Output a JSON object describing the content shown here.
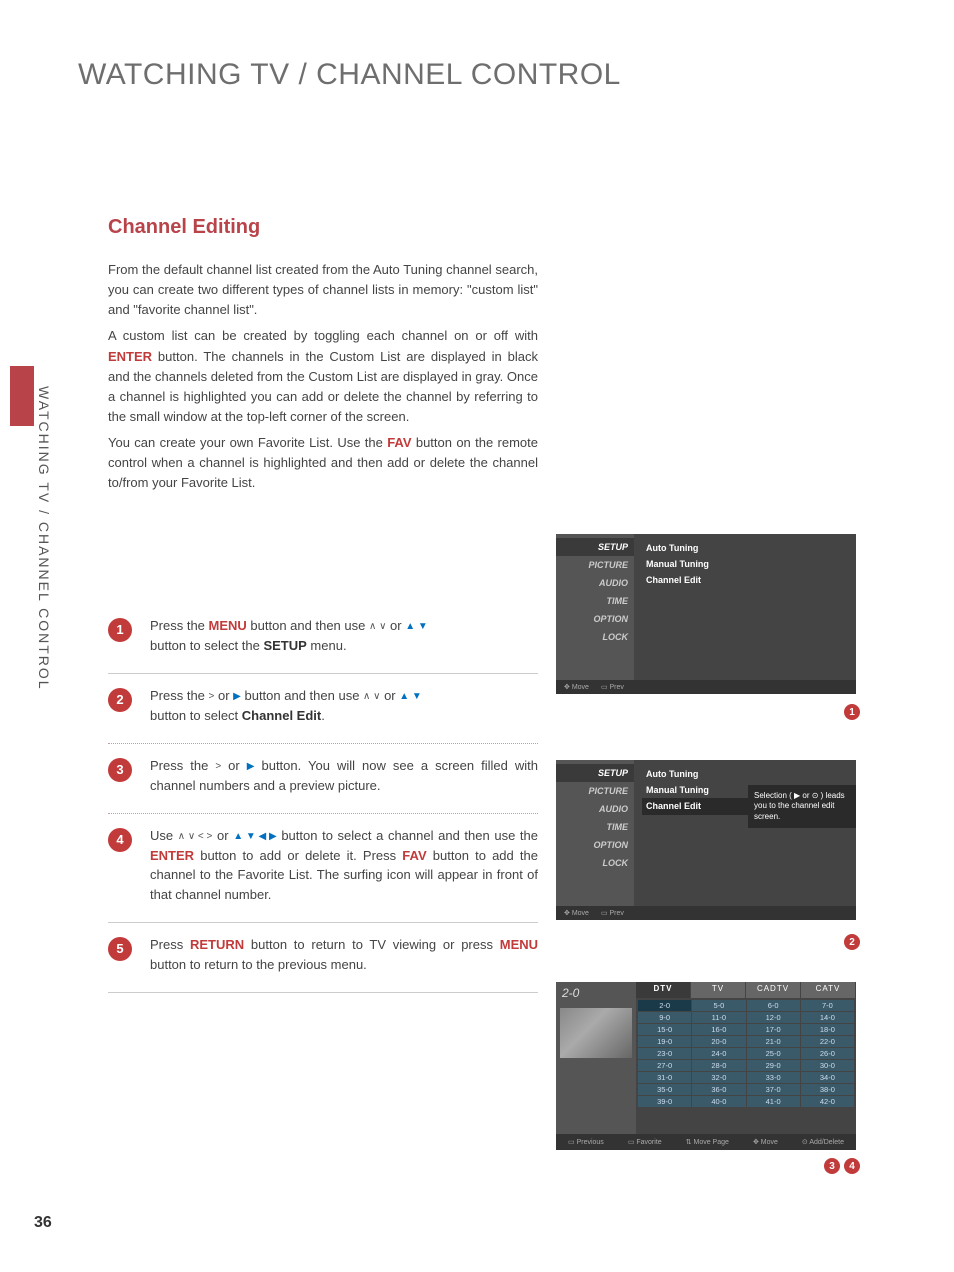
{
  "page_title": "WATCHING TV / CHANNEL CONTROL",
  "side_label": "WATCHING TV / CHANNEL CONTROL",
  "section_title": "Channel Editing",
  "page_number": "36",
  "intro": {
    "p1": "From the default channel list created from the Auto Tuning channel search, you can create two different types of channel lists in memory: \"custom list\" and \"favorite channel list\".",
    "p2a": "A custom list can be created by toggling each channel on or off with ",
    "p2_enter": "ENTER",
    "p2b": " button. The channels in the Custom List are displayed in black and the channels deleted from the Custom List are displayed in gray. Once a channel is highlighted you can add or delete the channel by referring to the small window at the top-left corner of the screen.",
    "p3a": "You can create your own Favorite List. Use the ",
    "p3_fav": "FAV",
    "p3b": " button on the remote control when a channel is highlighted and then add or delete the channel to/from your Favorite List."
  },
  "steps": {
    "s1a": "Press the ",
    "s1_menu": "MENU",
    "s1b": " button and then use   ",
    "s1c": "  or  ",
    "s1d": "button to select the ",
    "s1_setup": "SETUP",
    "s1e": " menu.",
    "s2a": "Press the ",
    "s2b": "  or  ",
    "s2c": " button and then use  ",
    "s2d": "  or  ",
    "s2e": "button to select ",
    "s2_ch": "Channel Edit",
    "s2f": ".",
    "s3a": "Press the ",
    "s3b": "   or  ",
    "s3c": "  button. You will now see a screen filled with channel numbers and a preview picture.",
    "s4a": "Use   ",
    "s4b": "   or  ",
    "s4c": "  button to select a channel and then use the ",
    "s4_enter": "ENTER",
    "s4d": " button  to add or delete it. Press ",
    "s4_fav": "FAV",
    "s4e": " button to add the channel to the Favorite List. The surfing icon will appear in front of that channel number.",
    "s5a": "Press ",
    "s5_ret": "RETURN",
    "s5b": " button to return to TV viewing or press ",
    "s5_menu": "MENU",
    "s5c": " button to return to the previous menu."
  },
  "osd": {
    "side_items": [
      "SETUP",
      "PICTURE",
      "AUDIO",
      "TIME",
      "OPTION",
      "LOCK"
    ],
    "menu_items": [
      "Auto Tuning",
      "Manual Tuning",
      "Channel Edit"
    ],
    "foot_move": "Move",
    "foot_prev": "Prev",
    "tooltip": "Selection ( ▶ or ⊙ ) leads you to the channel edit screen."
  },
  "osd3": {
    "channel": "2-0",
    "tabs": [
      "DTV",
      "TV",
      "CADTV",
      "CATV"
    ],
    "grid": [
      "2-0",
      "5-0",
      "6-0",
      "7-0",
      "9-0",
      "11-0",
      "12-0",
      "14-0",
      "15-0",
      "16-0",
      "17-0",
      "18-0",
      "19-0",
      "20-0",
      "21-0",
      "22-0",
      "23-0",
      "24-0",
      "25-0",
      "26-0",
      "27-0",
      "28-0",
      "29-0",
      "30-0",
      "31-0",
      "32-0",
      "33-0",
      "34-0",
      "35-0",
      "36-0",
      "37-0",
      "38-0",
      "39-0",
      "40-0",
      "41-0",
      "42-0"
    ],
    "foot": [
      "Previous",
      "Favorite",
      "Move Page",
      "Move",
      "Add/Delete"
    ]
  },
  "colors": {
    "accent": "#b8444a",
    "red": "#c23b3b"
  }
}
